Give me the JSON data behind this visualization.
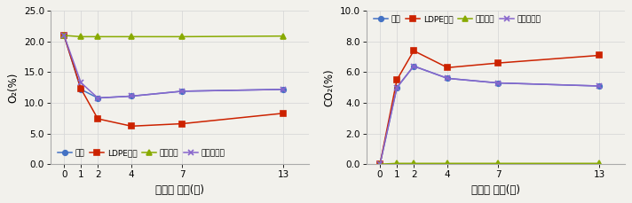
{
  "x": [
    0,
    1,
    2,
    4,
    7,
    13
  ],
  "left": {
    "ylabel": "O₂(%)",
    "xlabel": "수확후 일수(일)",
    "ylim": [
      0.0,
      25.0
    ],
    "yticks": [
      0.0,
      5.0,
      10.0,
      15.0,
      20.0,
      25.0
    ],
    "series": [
      {
        "label": "신문",
        "y": [
          21.0,
          12.2,
          10.8,
          11.1,
          11.9,
          12.2
        ],
        "color": "#4472C4",
        "marker": "o"
      },
      {
        "label": "LDPE필름",
        "y": [
          21.0,
          12.3,
          7.4,
          6.2,
          6.6,
          8.3
        ],
        "color": "#CC2200",
        "marker": "s"
      },
      {
        "label": "전공필름",
        "y": [
          21.0,
          20.8,
          20.8,
          20.8,
          20.8,
          20.9
        ],
        "color": "#88AA00",
        "marker": "^"
      },
      {
        "label": "기능성필름",
        "y": [
          21.0,
          13.3,
          10.8,
          11.1,
          11.9,
          12.2
        ],
        "color": "#8866CC",
        "marker": "x"
      }
    ],
    "legend_loc": "lower center",
    "legend_ncol": 4
  },
  "right": {
    "ylabel": "CO₂(%)",
    "xlabel": "수확후 일수(일)",
    "ylim": [
      0.0,
      10.0
    ],
    "yticks": [
      0.0,
      2.0,
      4.0,
      6.0,
      8.0,
      10.0
    ],
    "series": [
      {
        "label": "신문",
        "y": [
          0.0,
          5.0,
          6.4,
          5.6,
          5.3,
          5.1
        ],
        "color": "#4472C4",
        "marker": "o"
      },
      {
        "label": "LDPE필름",
        "y": [
          0.0,
          5.5,
          7.4,
          6.3,
          6.6,
          7.1
        ],
        "color": "#CC2200",
        "marker": "s"
      },
      {
        "label": "전공필름",
        "y": [
          0.0,
          0.05,
          0.05,
          0.05,
          0.05,
          0.05
        ],
        "color": "#88AA00",
        "marker": "^"
      },
      {
        "label": "기능성필름",
        "y": [
          0.0,
          5.0,
          6.4,
          5.6,
          5.3,
          5.1
        ],
        "color": "#8866CC",
        "marker": "x"
      }
    ],
    "legend_loc": "upper left",
    "legend_ncol": 4
  },
  "bg_color": "#F2F1EC",
  "grid_color": "#D8D8D8",
  "tick_fontsize": 7.5,
  "label_fontsize": 8.5
}
